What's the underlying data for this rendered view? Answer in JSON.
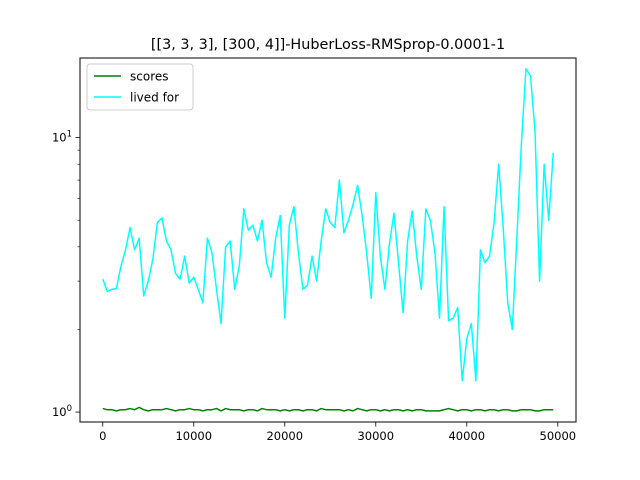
{
  "chart_data": {
    "type": "line",
    "title": "[[3, 3, 3], [300, 4]]-HuberLoss-RMSprop-0.0001-1",
    "xlabel": "",
    "ylabel": "",
    "yscale": "log",
    "xlim": [
      -2500,
      52000
    ],
    "ylim": [
      0.92,
      19.5
    ],
    "grid": false,
    "legend_position": "top-left",
    "x_ticks": [
      0,
      10000,
      20000,
      30000,
      40000,
      50000
    ],
    "x_tick_labels": [
      "0",
      "10000",
      "20000",
      "30000",
      "40000",
      "50000"
    ],
    "y_ticks": [
      1,
      10
    ],
    "y_tick_labels": [
      "10^0",
      "10^1"
    ],
    "x": [
      0,
      500,
      1000,
      1500,
      2000,
      2500,
      3000,
      3500,
      4000,
      4500,
      5000,
      5500,
      6000,
      6500,
      7000,
      7500,
      8000,
      8500,
      9000,
      9500,
      10000,
      10500,
      11000,
      11500,
      12000,
      12500,
      13000,
      13500,
      14000,
      14500,
      15000,
      15500,
      16000,
      16500,
      17000,
      17500,
      18000,
      18500,
      19000,
      19500,
      20000,
      20500,
      21000,
      21500,
      22000,
      22500,
      23000,
      23500,
      24000,
      24500,
      25000,
      25500,
      26000,
      26500,
      27000,
      27500,
      28000,
      28500,
      29000,
      29500,
      30000,
      30500,
      31000,
      31500,
      32000,
      32500,
      33000,
      33500,
      34000,
      34500,
      35000,
      35500,
      36000,
      36500,
      37000,
      37500,
      38000,
      38500,
      39000,
      39500,
      40000,
      40500,
      41000,
      41500,
      42000,
      42500,
      43000,
      43500,
      44000,
      44500,
      45000,
      45500,
      46000,
      46500,
      47000,
      47500,
      48000,
      48500,
      49000,
      49500
    ],
    "series": [
      {
        "name": "scores",
        "color": "#008000",
        "values": [
          1.03,
          1.02,
          1.02,
          1.01,
          1.02,
          1.02,
          1.03,
          1.02,
          1.04,
          1.02,
          1.01,
          1.02,
          1.02,
          1.02,
          1.03,
          1.02,
          1.01,
          1.02,
          1.02,
          1.03,
          1.02,
          1.02,
          1.01,
          1.02,
          1.02,
          1.03,
          1.01,
          1.03,
          1.02,
          1.02,
          1.02,
          1.01,
          1.02,
          1.02,
          1.01,
          1.03,
          1.02,
          1.02,
          1.02,
          1.01,
          1.02,
          1.01,
          1.02,
          1.02,
          1.01,
          1.02,
          1.02,
          1.01,
          1.03,
          1.02,
          1.02,
          1.02,
          1.02,
          1.01,
          1.02,
          1.01,
          1.03,
          1.02,
          1.01,
          1.02,
          1.02,
          1.01,
          1.02,
          1.01,
          1.02,
          1.02,
          1.01,
          1.02,
          1.01,
          1.02,
          1.02,
          1.01,
          1.01,
          1.01,
          1.01,
          1.02,
          1.03,
          1.02,
          1.01,
          1.02,
          1.02,
          1.01,
          1.02,
          1.02,
          1.01,
          1.02,
          1.02,
          1.01,
          1.02,
          1.02,
          1.01,
          1.01,
          1.02,
          1.02,
          1.02,
          1.01,
          1.01,
          1.02,
          1.02,
          1.02
        ]
      },
      {
        "name": "lived for",
        "color": "#00ffff",
        "values": [
          3.05,
          2.75,
          2.8,
          2.82,
          3.4,
          3.9,
          4.7,
          3.9,
          4.3,
          2.65,
          3.0,
          3.6,
          4.9,
          5.1,
          4.2,
          3.9,
          3.2,
          3.05,
          3.7,
          2.95,
          3.1,
          2.8,
          2.5,
          4.3,
          3.8,
          2.8,
          2.1,
          4.0,
          4.2,
          2.8,
          3.4,
          5.5,
          4.6,
          4.8,
          4.2,
          5.0,
          3.5,
          3.1,
          4.3,
          5.2,
          2.2,
          4.8,
          5.6,
          3.8,
          2.8,
          2.9,
          3.7,
          3.0,
          4.2,
          5.5,
          4.9,
          4.7,
          7.0,
          4.5,
          5.0,
          5.7,
          6.7,
          5.2,
          3.8,
          2.6,
          6.3,
          3.7,
          2.8,
          4.1,
          5.3,
          3.5,
          2.3,
          4.2,
          5.4,
          3.7,
          2.8,
          5.5,
          5.0,
          3.8,
          2.2,
          5.6,
          2.15,
          2.2,
          2.4,
          1.3,
          1.85,
          2.1,
          1.3,
          3.9,
          3.5,
          3.7,
          4.9,
          8.0,
          4.7,
          2.5,
          2.0,
          4.3,
          9.5,
          17.8,
          16.8,
          10.5,
          3.0,
          8.0,
          5.0,
          8.8
        ]
      }
    ]
  }
}
